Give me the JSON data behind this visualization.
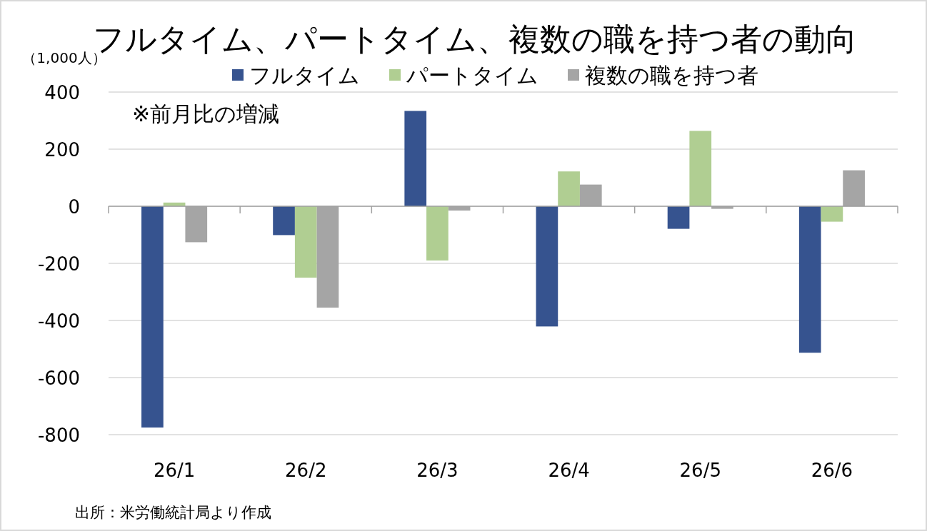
{
  "chart_data": {
    "type": "bar",
    "title": "フルタイム、パートタイム、複数の職を持つ者の動向",
    "ylabel": "（1,000人）",
    "annotations": [
      "※前月比の増減",
      "出所：米労働統計局より作成"
    ],
    "categories": [
      "26/1",
      "26/2",
      "26/3",
      "26/4",
      "26/5",
      "26/6"
    ],
    "series": [
      {
        "name": "フルタイム",
        "color": "#36538f",
        "values": [
          -775,
          -101,
          334,
          -421,
          -79,
          -513
        ]
      },
      {
        "name": "パートタイム",
        "color": "#b0ce92",
        "values": [
          13,
          -250,
          -190,
          122,
          264,
          -54
        ]
      },
      {
        "name": "複数の職を持つ者",
        "color": "#a5a5a5",
        "values": [
          -126,
          -355,
          -15,
          76,
          -9,
          126
        ]
      }
    ],
    "ylim": [
      -800,
      400
    ],
    "yticks": [
      -800,
      -600,
      -400,
      -200,
      0,
      200,
      400
    ],
    "grid": "y",
    "legend": "top"
  }
}
